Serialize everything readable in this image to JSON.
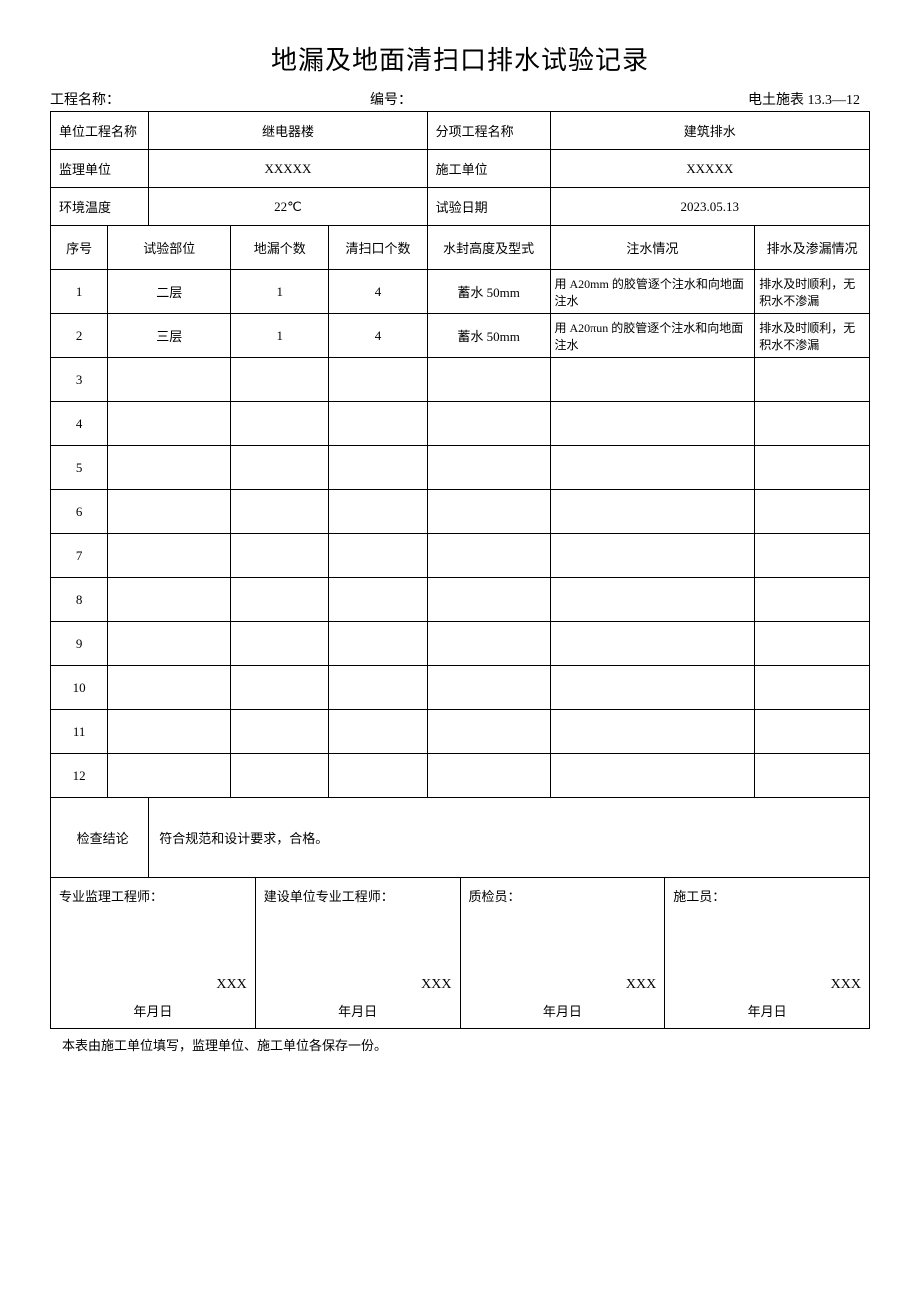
{
  "title": "地漏及地面清扫口排水试验记录",
  "header": {
    "project_name_label": "工程名称：",
    "serial_label": "编号：",
    "form_code": "电土施表 13.3—12"
  },
  "info": {
    "unit_project_label": "单位工程名称",
    "unit_project_value": "继电器楼",
    "sub_project_label": "分项工程名称",
    "sub_project_value": "建筑排水",
    "supervisor_label": "监理单位",
    "supervisor_value": "XXXXX",
    "constructor_label": "施工单位",
    "constructor_value": "XXXXX",
    "temp_label": "环境温度",
    "temp_value": "22℃",
    "test_date_label": "试验日期",
    "test_date_value": "2023.05.13"
  },
  "columns": {
    "c1": "序号",
    "c2": "试验部位",
    "c3": "地漏个数",
    "c4": "清扫口个数",
    "c5": "水封高度及型式",
    "c6": "注水情况",
    "c7": "排水及渗漏情况"
  },
  "rows": [
    {
      "n": "1",
      "loc": "二层",
      "drain": "1",
      "clean": "4",
      "seal": "蓄水 50mm",
      "inject": "用 A20mm 的胶管逐个注水和向地面注水",
      "result": "排水及时顺利，无积水不渗漏"
    },
    {
      "n": "2",
      "loc": "三层",
      "drain": "1",
      "clean": "4",
      "seal": "蓄水 50mm",
      "inject": "用 A20πun 的胶管逐个注水和向地面注水",
      "result": "排水及时顺利，无积水不渗漏"
    },
    {
      "n": "3",
      "loc": "",
      "drain": "",
      "clean": "",
      "seal": "",
      "inject": "",
      "result": ""
    },
    {
      "n": "4",
      "loc": "",
      "drain": "",
      "clean": "",
      "seal": "",
      "inject": "",
      "result": ""
    },
    {
      "n": "5",
      "loc": "",
      "drain": "",
      "clean": "",
      "seal": "",
      "inject": "",
      "result": ""
    },
    {
      "n": "6",
      "loc": "",
      "drain": "",
      "clean": "",
      "seal": "",
      "inject": "",
      "result": ""
    },
    {
      "n": "7",
      "loc": "",
      "drain": "",
      "clean": "",
      "seal": "",
      "inject": "",
      "result": ""
    },
    {
      "n": "8",
      "loc": "",
      "drain": "",
      "clean": "",
      "seal": "",
      "inject": "",
      "result": ""
    },
    {
      "n": "9",
      "loc": "",
      "drain": "",
      "clean": "",
      "seal": "",
      "inject": "",
      "result": ""
    },
    {
      "n": "10",
      "loc": "",
      "drain": "",
      "clean": "",
      "seal": "",
      "inject": "",
      "result": ""
    },
    {
      "n": "11",
      "loc": "",
      "drain": "",
      "clean": "",
      "seal": "",
      "inject": "",
      "result": ""
    },
    {
      "n": "12",
      "loc": "",
      "drain": "",
      "clean": "",
      "seal": "",
      "inject": "",
      "result": ""
    }
  ],
  "conclusion": {
    "label": "检查结论",
    "value": "符合规范和设计要求，合格。"
  },
  "signatures": [
    {
      "role": "专业监理工程师：",
      "name": "XXX",
      "date": "年月日"
    },
    {
      "role": "建设单位专业工程师：",
      "name": "XXX",
      "date": "年月日"
    },
    {
      "role": "质检员：",
      "name": "XXX",
      "date": "年月日"
    },
    {
      "role": "施工员：",
      "name": "XXX",
      "date": "年月日"
    }
  ],
  "footer_note": "本表由施工单位填写，监理单位、施工单位各保存一份。",
  "styling": {
    "page_bg": "#ffffff",
    "text_color": "#000000",
    "border_color": "#000000",
    "title_fontsize": 26,
    "body_fontsize": 14,
    "cell_fontsize": 13,
    "font_family": "SimSun"
  }
}
